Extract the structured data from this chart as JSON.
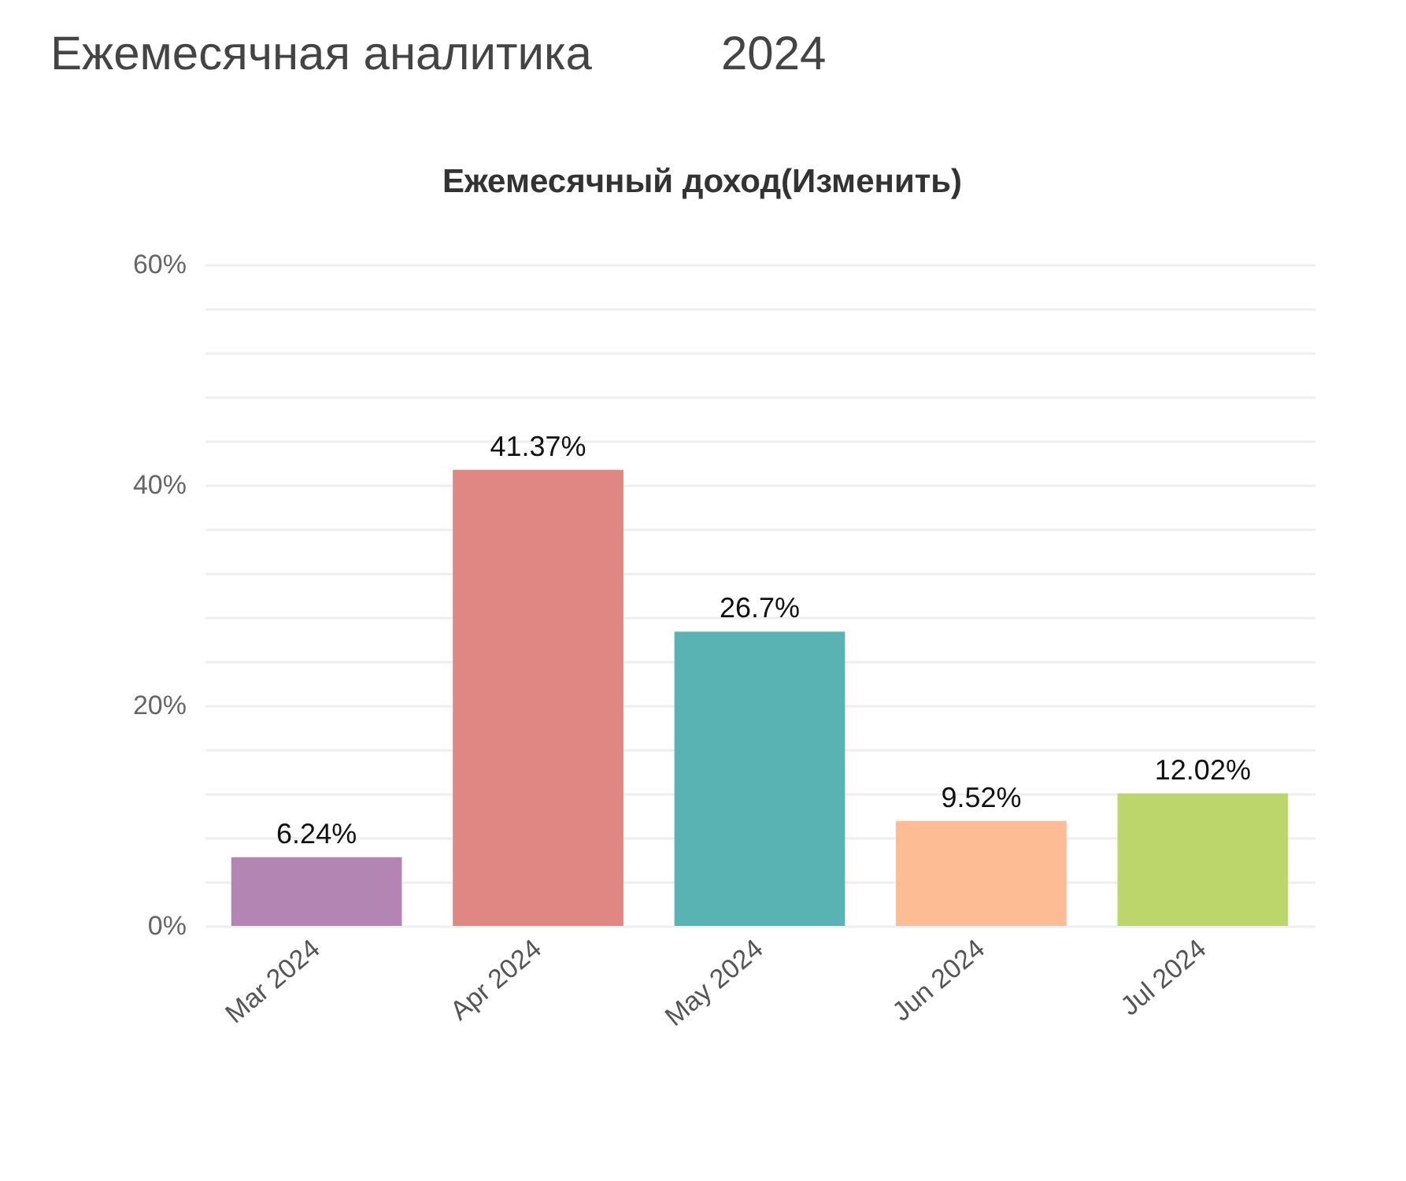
{
  "chart_data": {
    "type": "bar",
    "title": "Ежемесячный доход(Изменить)",
    "annotations": [
      "Ежемесячная аналитика",
      "2024"
    ],
    "categories": [
      "Mar 2024",
      "Apr 2024",
      "May 2024",
      "Jun 2024",
      "Jul 2024"
    ],
    "values": [
      6.24,
      41.37,
      26.7,
      9.52,
      12.02
    ],
    "colors": [
      "#b385b3",
      "#e08683",
      "#5ab3b3",
      "#fdbc93",
      "#bdd66b"
    ],
    "value_labels": [
      "6.24%",
      "41.37%",
      "26.7%",
      "9.52%",
      "12.02%"
    ],
    "ylim": [
      0,
      60
    ],
    "yticks": [
      {
        "value": 0,
        "label": "0%"
      },
      {
        "value": 4,
        "label": null
      },
      {
        "value": 8,
        "label": null
      },
      {
        "value": 12,
        "label": null
      },
      {
        "value": 16,
        "label": null
      },
      {
        "value": 20,
        "label": "20%"
      },
      {
        "value": 24,
        "label": null
      },
      {
        "value": 28,
        "label": null
      },
      {
        "value": 32,
        "label": null
      },
      {
        "value": 36,
        "label": null
      },
      {
        "value": 40,
        "label": "40%"
      },
      {
        "value": 44,
        "label": null
      },
      {
        "value": 48,
        "label": null
      },
      {
        "value": 52,
        "label": null
      },
      {
        "value": 56,
        "label": null
      },
      {
        "value": 60,
        "label": "60%"
      }
    ],
    "grid": "y",
    "legend": false
  }
}
